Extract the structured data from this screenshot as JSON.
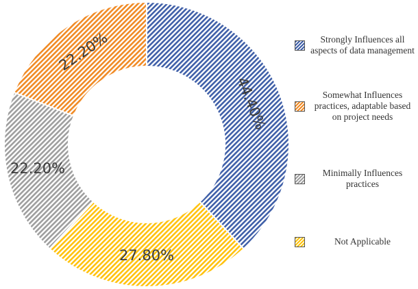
{
  "chart_data": {
    "type": "pie",
    "style": "donut",
    "categories": [
      "Strongly Influences all aspects of data management",
      "Somewhat Influences practices, adaptable based on project needs",
      "Minimally Influences practices",
      "Not Applicable"
    ],
    "values": [
      44.4,
      22.2,
      22.2,
      27.8
    ],
    "data_labels": [
      "44.40%",
      "22.20%",
      "22.20%",
      "27.80%"
    ],
    "slice_order": [
      0,
      3,
      2,
      1
    ],
    "colors": [
      "#3f5fa8",
      "#f08a24",
      "#9e9e9e",
      "#ffc20e"
    ],
    "fill_pattern": "diagonal-hatch",
    "legend_position": "right",
    "title": ""
  },
  "legend": [
    {
      "label": "Strongly Influences all aspects of data management",
      "color": "#3f5fa8"
    },
    {
      "label": "Somewhat Influences practices, adaptable based on project needs",
      "color": "#f08a24"
    },
    {
      "label": "Minimally Influences practices",
      "color": "#9e9e9e"
    },
    {
      "label": "Not Applicable",
      "color": "#ffc20e"
    }
  ]
}
